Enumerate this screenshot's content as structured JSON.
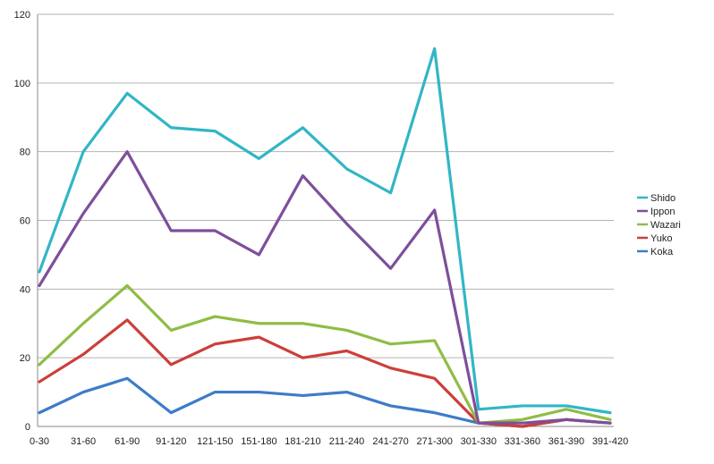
{
  "chart_data": {
    "type": "line",
    "categories": [
      "0-30",
      "31-60",
      "61-90",
      "91-120",
      "121-150",
      "151-180",
      "181-210",
      "211-240",
      "241-270",
      "271-300",
      "301-330",
      "331-360",
      "361-390",
      "391-420"
    ],
    "series": [
      {
        "name": "Shido",
        "color": "#31b6c5",
        "values": [
          45,
          80,
          97,
          87,
          86,
          78,
          87,
          75,
          68,
          110,
          5,
          6,
          6,
          4
        ]
      },
      {
        "name": "Ippon",
        "color": "#7d4f9b",
        "values": [
          41,
          62,
          80,
          57,
          57,
          50,
          73,
          59,
          46,
          63,
          1,
          1,
          2,
          1
        ]
      },
      {
        "name": "Wazari",
        "color": "#8fbd46",
        "values": [
          18,
          30,
          41,
          28,
          32,
          30,
          30,
          28,
          24,
          25,
          1,
          2,
          5,
          2
        ]
      },
      {
        "name": "Yuko",
        "color": "#cc3f3a",
        "values": [
          13,
          21,
          31,
          18,
          24,
          26,
          20,
          22,
          17,
          14,
          1,
          0,
          2,
          1
        ]
      },
      {
        "name": "Koka",
        "color": "#3d7cc8",
        "values": [
          4,
          10,
          14,
          4,
          10,
          10,
          9,
          10,
          6,
          4,
          1,
          0,
          2,
          1
        ]
      }
    ],
    "ylim": [
      0,
      120
    ],
    "yticks": [
      "0",
      "20",
      "40",
      "60",
      "80",
      "100",
      "120"
    ],
    "grid": true,
    "legend": "right"
  }
}
